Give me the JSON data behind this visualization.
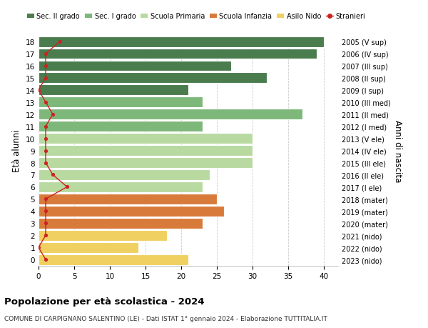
{
  "ages": [
    18,
    17,
    16,
    15,
    14,
    13,
    12,
    11,
    10,
    9,
    8,
    7,
    6,
    5,
    4,
    3,
    2,
    1,
    0
  ],
  "years": [
    "2005 (V sup)",
    "2006 (IV sup)",
    "2007 (III sup)",
    "2008 (II sup)",
    "2009 (I sup)",
    "2010 (III med)",
    "2011 (II med)",
    "2012 (I med)",
    "2013 (V ele)",
    "2014 (IV ele)",
    "2015 (III ele)",
    "2016 (II ele)",
    "2017 (I ele)",
    "2018 (mater)",
    "2019 (mater)",
    "2020 (mater)",
    "2021 (nido)",
    "2022 (nido)",
    "2023 (nido)"
  ],
  "values": [
    40,
    39,
    27,
    32,
    21,
    23,
    37,
    23,
    30,
    30,
    30,
    24,
    23,
    25,
    26,
    23,
    18,
    14,
    21
  ],
  "stranieri": [
    3,
    1,
    1,
    1,
    0,
    1,
    2,
    1,
    1,
    1,
    1,
    2,
    4,
    1,
    1,
    1,
    1,
    0,
    1
  ],
  "sec_II_color": "#4a7c4e",
  "sec_I_color": "#7db87a",
  "primaria_color": "#b8d9a0",
  "infanzia_color": "#d87b3a",
  "nido_color": "#f0d060",
  "stranieri_color": "#cc2222",
  "bar_colors": [
    "#4a7c4e",
    "#4a7c4e",
    "#4a7c4e",
    "#4a7c4e",
    "#4a7c4e",
    "#7db87a",
    "#7db87a",
    "#7db87a",
    "#b8d9a0",
    "#b8d9a0",
    "#b8d9a0",
    "#b8d9a0",
    "#b8d9a0",
    "#d87b3a",
    "#d87b3a",
    "#d87b3a",
    "#f0d060",
    "#f0d060",
    "#f0d060"
  ],
  "xlim_max": 42,
  "ylabel_left": "Età alunni",
  "ylabel_right": "Anni di nascita",
  "title": "Popolazione per età scolastica - 2024",
  "subtitle": "COMUNE DI CARPIGNANO SALENTINO (LE) - Dati ISTAT 1° gennaio 2024 - Elaborazione TUTTITALIA.IT",
  "legend_labels": [
    "Sec. II grado",
    "Sec. I grado",
    "Scuola Primaria",
    "Scuola Infanzia",
    "Asilo Nido",
    "Stranieri"
  ],
  "legend_colors": [
    "#4a7c4e",
    "#7db87a",
    "#b8d9a0",
    "#d87b3a",
    "#f0d060",
    "#cc2222"
  ],
  "bg_color": "#ffffff",
  "bar_height": 0.88,
  "grid_color": "#cccccc",
  "xticks": [
    0,
    5,
    10,
    15,
    20,
    25,
    30,
    35,
    40
  ]
}
